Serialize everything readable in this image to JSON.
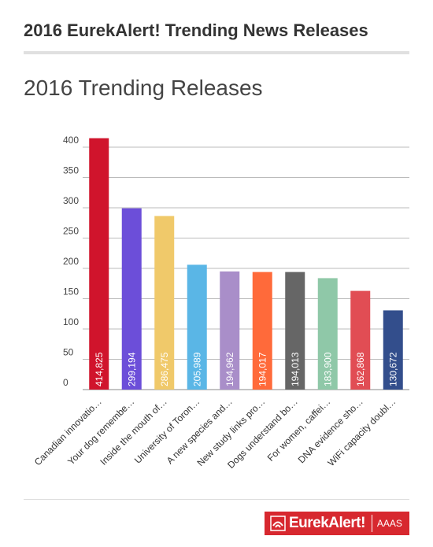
{
  "header": {
    "title": "2016 EurekAlert! Trending News Releases"
  },
  "footer": {
    "logo_text": "EurekAlert!",
    "logo_org": "AAAS"
  },
  "chart_data": {
    "type": "bar",
    "title": "2016 Trending Releases",
    "xlabel": "",
    "ylabel": "",
    "ylim": [
      0,
      400
    ],
    "yticks": [
      0,
      50,
      100,
      150,
      200,
      250,
      300,
      350,
      400
    ],
    "grid": true,
    "categories": [
      "Canadian innovatio…",
      "Your dog remembe…",
      "Inside the mouth of…",
      "University of Toron…",
      "A new species and…",
      "New study links pro…",
      "Dogs understand bo…",
      "For women, caffei…",
      "DNA evidence sho…",
      "WiFi capacity doubl…"
    ],
    "values": [
      414.825,
      299.194,
      286.475,
      205.989,
      194.962,
      194.017,
      194.013,
      183.9,
      162.868,
      130.672
    ],
    "value_labels": [
      "414,825",
      "299,194",
      "286,475",
      "205,989",
      "194,962",
      "194,017",
      "194,013",
      "183,900",
      "162,868",
      "130,672"
    ],
    "colors": [
      "#d0142c",
      "#6c4ed9",
      "#f0c96a",
      "#5ab6e6",
      "#a98ec9",
      "#ff6a3a",
      "#666666",
      "#8fc8a8",
      "#e14d54",
      "#334e8c"
    ]
  }
}
